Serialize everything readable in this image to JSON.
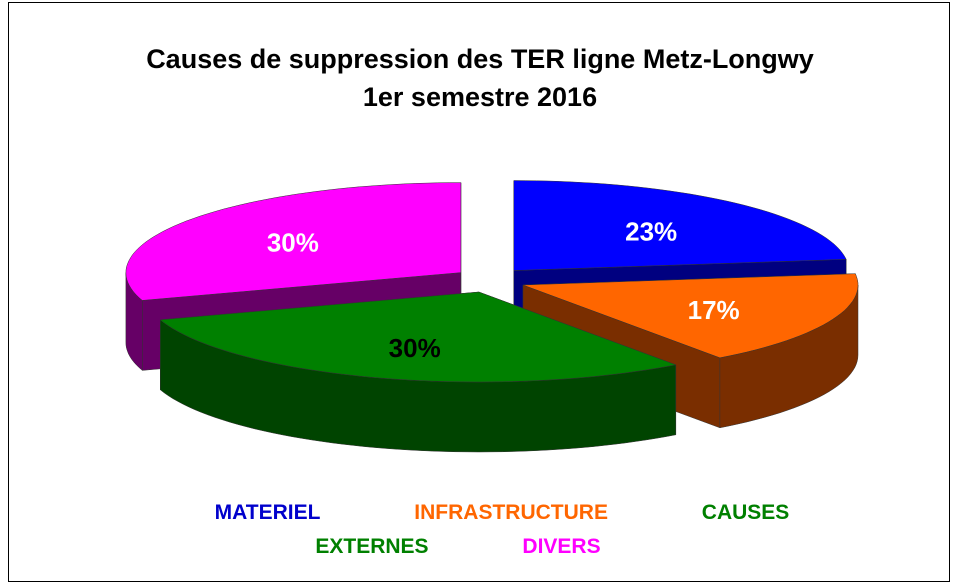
{
  "chart_data": {
    "type": "pie3d",
    "title": "Causes de suppression des TER ligne Metz-Longwy  1er semestre 2016",
    "categories": [
      "MATERIEL",
      "INFRASTRUCTURE",
      "CAUSES EXTERNES",
      "DIVERS"
    ],
    "values": [
      23,
      17,
      30,
      30
    ],
    "value_labels": [
      "23%",
      "17%",
      "30%",
      "30%"
    ],
    "colors": [
      "#0000ff",
      "#ff6600",
      "#008000",
      "#ff00ff"
    ],
    "side_colors": [
      "#000080",
      "#7a2e00",
      "#004400",
      "#660066"
    ],
    "label_colors": [
      "#ffffff",
      "#ffffff",
      "#000000",
      "#ffffff"
    ],
    "legend_colors": [
      "#0000cc",
      "#ff6600",
      "#008000",
      "#ff00ff"
    ]
  }
}
